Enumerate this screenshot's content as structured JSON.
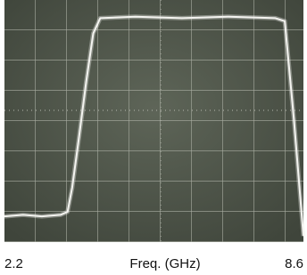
{
  "chart_data": {
    "type": "line",
    "x_label": "Freq. (GHz)",
    "xlim": [
      2.2,
      8.6
    ],
    "xticks": [
      2.2,
      8.6
    ],
    "ylim": [
      0,
      8
    ],
    "series": [
      {
        "color": "#f4f4f0",
        "x": [
          2.2,
          2.6,
          3.0,
          3.4,
          3.55,
          3.65,
          3.8,
          3.95,
          4.1,
          4.25,
          5.0,
          6.0,
          7.0,
          8.0,
          8.2,
          8.4,
          8.6
        ],
        "values": [
          0.85,
          0.9,
          0.85,
          0.9,
          1.0,
          1.8,
          3.5,
          5.3,
          6.9,
          7.4,
          7.45,
          7.4,
          7.45,
          7.4,
          7.3,
          4.0,
          0.2
        ]
      }
    ]
  }
}
